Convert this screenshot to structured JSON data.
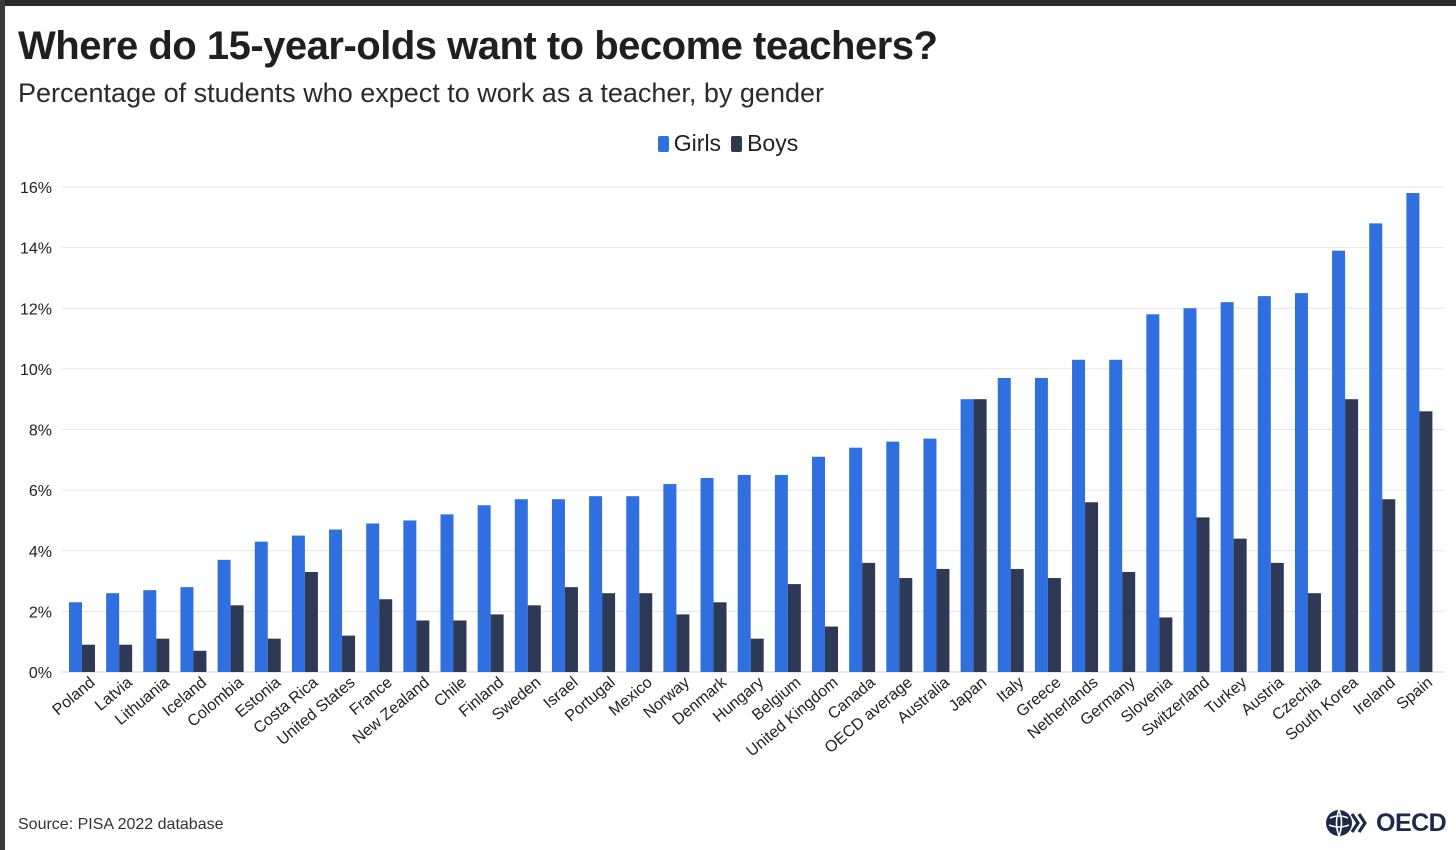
{
  "title": "Where do 15-year-olds want to become teachers?",
  "subtitle": "Percentage of students who expect to work as a teacher, by gender",
  "source": "Source: PISA 2022 database",
  "logo_text": "OECD",
  "colors": {
    "girls": "#2f6fe0",
    "boys": "#2e3a55",
    "grid": "#e6e6e6",
    "axis": "#cfcfcf",
    "text": "#222222"
  },
  "chart_data": {
    "type": "bar",
    "legend_position": "top-center",
    "grid": true,
    "ylim": [
      0,
      16
    ],
    "yticks": [
      0,
      2,
      4,
      6,
      8,
      10,
      12,
      14,
      16
    ],
    "ytick_suffix": "%",
    "categories": [
      "Poland",
      "Latvia",
      "Lithuania",
      "Iceland",
      "Colombia",
      "Estonia",
      "Costa Rica",
      "United States",
      "France",
      "New Zealand",
      "Chile",
      "Finland",
      "Sweden",
      "Israel",
      "Portugal",
      "Mexico",
      "Norway",
      "Denmark",
      "Hungary",
      "Belgium",
      "United Kingdom",
      "Canada",
      "OECD average",
      "Australia",
      "Japan",
      "Italy",
      "Greece",
      "Netherlands",
      "Germany",
      "Slovenia",
      "Switzerland",
      "Turkey",
      "Austria",
      "Czechia",
      "South Korea",
      "Ireland",
      "Spain"
    ],
    "series": [
      {
        "name": "Girls",
        "color": "#2f6fe0",
        "values": [
          2.3,
          2.6,
          2.7,
          2.8,
          3.7,
          4.3,
          4.5,
          4.7,
          4.9,
          5.0,
          5.2,
          5.5,
          5.7,
          5.7,
          5.8,
          5.8,
          6.2,
          6.4,
          6.5,
          6.5,
          7.1,
          7.4,
          7.6,
          7.7,
          9.0,
          9.7,
          9.7,
          10.3,
          10.3,
          11.8,
          12.0,
          12.2,
          12.4,
          12.5,
          13.9,
          14.8,
          15.8
        ]
      },
      {
        "name": "Boys",
        "color": "#2e3a55",
        "values": [
          0.9,
          0.9,
          1.1,
          0.7,
          2.2,
          1.1,
          3.3,
          1.2,
          2.4,
          1.7,
          1.7,
          1.9,
          2.2,
          2.8,
          2.6,
          2.6,
          1.9,
          2.3,
          1.1,
          2.9,
          1.5,
          3.6,
          3.1,
          3.4,
          9.0,
          3.4,
          3.1,
          5.6,
          3.3,
          1.8,
          5.1,
          4.4,
          3.6,
          2.6,
          9.0,
          5.7,
          8.6
        ]
      }
    ]
  }
}
